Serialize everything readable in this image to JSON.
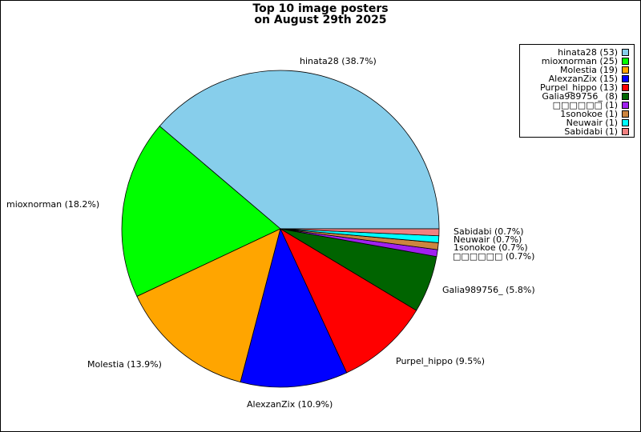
{
  "chart_data": {
    "type": "pie",
    "title_lines": [
      "Top 10 image posters",
      "on August 29th 2025"
    ],
    "slices": [
      {
        "name": "hinata28",
        "count": "53",
        "percent": "38.7%",
        "value": 38.7,
        "color": "#87ceeb"
      },
      {
        "name": "mioxnorman",
        "count": "25",
        "percent": "18.2%",
        "value": 18.2,
        "color": "#00ff00"
      },
      {
        "name": "Molestia",
        "count": "19",
        "percent": "13.9%",
        "value": 13.9,
        "color": "#ffa500"
      },
      {
        "name": "AlexzanZix",
        "count": "15",
        "percent": "10.9%",
        "value": 10.9,
        "color": "#0000ff"
      },
      {
        "name": "Purpel_hippo",
        "count": "13",
        "percent": "9.5%",
        "value": 9.5,
        "color": "#ff0000"
      },
      {
        "name": "Galia989756_",
        "count": "8",
        "percent": "5.8%",
        "value": 5.8,
        "color": "#006400"
      },
      {
        "name": "□□□□□□",
        "count": "1",
        "percent": "0.7%",
        "value": 0.7,
        "color": "#a020f0"
      },
      {
        "name": "1sonokoe",
        "count": "1",
        "percent": "0.7%",
        "value": 0.7,
        "color": "#cd853f"
      },
      {
        "name": "Neuwair",
        "count": "1",
        "percent": "0.7%",
        "value": 0.7,
        "color": "#00ffff"
      },
      {
        "name": "Sabidabi",
        "count": "1",
        "percent": "0.7%",
        "value": 0.7,
        "color": "#f08080"
      }
    ],
    "legend_position": "top-right"
  }
}
